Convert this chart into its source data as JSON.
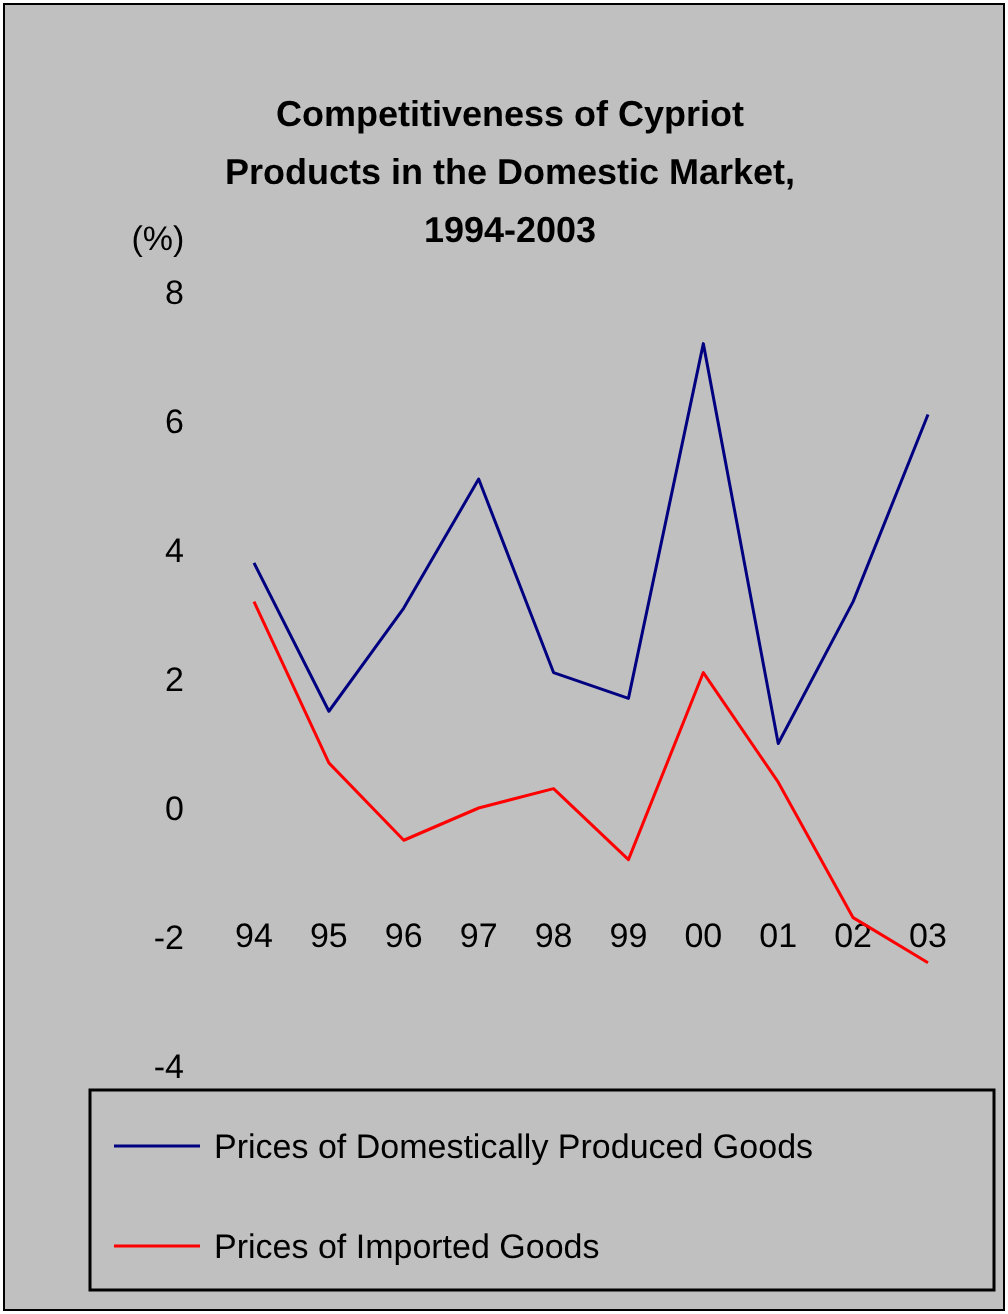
{
  "chart_data": {
    "type": "line",
    "title": "Competitiveness of Cypriot Products in the Domestic Market, 1994-2003",
    "ylabel": "(%)",
    "categories": [
      "94",
      "95",
      "96",
      "97",
      "98",
      "99",
      "00",
      "01",
      "02",
      "03"
    ],
    "ylim": [
      -4,
      8
    ],
    "yticks": [
      -4,
      -2,
      0,
      2,
      4,
      6,
      8
    ],
    "grid": false,
    "legend": "bottom",
    "marker": "none",
    "line_style": "solid",
    "series": [
      {
        "name": "Prices of Domestically Produced Goods",
        "color": "#000080",
        "values": [
          3.8,
          1.5,
          3.1,
          5.1,
          2.1,
          1.7,
          7.2,
          1.0,
          3.2,
          6.1
        ]
      },
      {
        "name": "Prices of Imported Goods",
        "color": "#ff0000",
        "values": [
          3.2,
          0.7,
          -0.5,
          0.0,
          0.3,
          -0.8,
          2.1,
          0.4,
          -1.7,
          -2.4
        ]
      }
    ]
  }
}
